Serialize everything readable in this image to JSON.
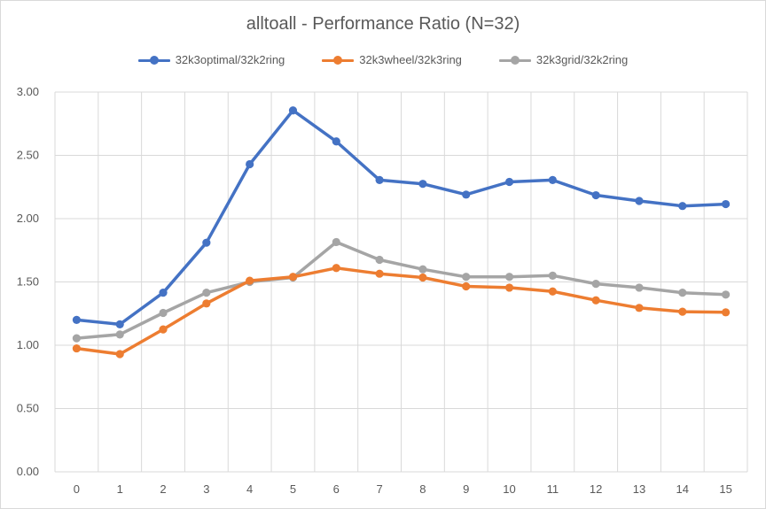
{
  "chart_data": {
    "type": "line",
    "title": "alltoall - Performance Ratio (N=32)",
    "xlabel": "",
    "ylabel": "",
    "x": [
      0,
      1,
      2,
      3,
      4,
      5,
      6,
      7,
      8,
      9,
      10,
      11,
      12,
      13,
      14,
      15
    ],
    "ylim": [
      0,
      3
    ],
    "yticks": [
      "0.00",
      "0.50",
      "1.00",
      "1.50",
      "2.00",
      "2.50",
      "3.00"
    ],
    "grid": true,
    "legend_position": "top",
    "series": [
      {
        "name": "32k3optimal/32k2ring",
        "color": "#4472C4",
        "values": [
          1.2,
          1.165,
          1.415,
          1.81,
          2.43,
          2.855,
          2.61,
          2.305,
          2.275,
          2.19,
          2.29,
          2.305,
          2.185,
          2.14,
          2.1,
          2.115
        ]
      },
      {
        "name": "32k3wheel/32k3ring",
        "color": "#ED7D31",
        "values": [
          0.975,
          0.93,
          1.125,
          1.33,
          1.51,
          1.54,
          1.61,
          1.565,
          1.535,
          1.465,
          1.455,
          1.425,
          1.355,
          1.295,
          1.265,
          1.26
        ]
      },
      {
        "name": "32k3grid/32k2ring",
        "color": "#A5A5A5",
        "values": [
          1.055,
          1.085,
          1.255,
          1.415,
          1.5,
          1.535,
          1.815,
          1.675,
          1.6,
          1.54,
          1.54,
          1.55,
          1.485,
          1.455,
          1.415,
          1.4
        ]
      }
    ]
  }
}
